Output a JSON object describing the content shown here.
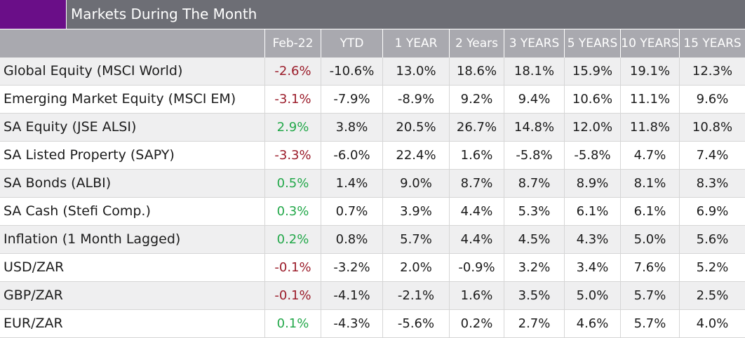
{
  "title": "Markets During The Month",
  "colors": {
    "title_bg": "#6d6e75",
    "swatch": "#6a0e88",
    "header_bg": "#a9a9af",
    "negative": "#9b1c2a",
    "positive": "#23a84a"
  },
  "chart_data": {
    "type": "table",
    "columns": [
      "Feb-22",
      "YTD",
      "1 YEAR",
      "2 Years",
      "3 YEARS",
      "5 YEARS",
      "10 YEARS",
      "15 YEARS"
    ],
    "rows": [
      {
        "label": "Global Equity (MSCI World)",
        "values": [
          "-2.6%",
          "-10.6%",
          "13.0%",
          "18.6%",
          "18.1%",
          "15.9%",
          "19.1%",
          "12.3%"
        ]
      },
      {
        "label": "Emerging Market Equity (MSCI EM)",
        "values": [
          "-3.1%",
          "-7.9%",
          "-8.9%",
          "9.2%",
          "9.4%",
          "10.6%",
          "11.1%",
          "9.6%"
        ]
      },
      {
        "label": "SA Equity (JSE ALSI)",
        "values": [
          "2.9%",
          "3.8%",
          "20.5%",
          "26.7%",
          "14.8%",
          "12.0%",
          "11.8%",
          "10.8%"
        ]
      },
      {
        "label": "SA Listed Property (SAPY)",
        "values": [
          "-3.3%",
          "-6.0%",
          "22.4%",
          "1.6%",
          "-5.8%",
          "-5.8%",
          "4.7%",
          "7.4%"
        ]
      },
      {
        "label": "SA Bonds (ALBI)",
        "values": [
          "0.5%",
          "1.4%",
          "9.0%",
          "8.7%",
          "8.7%",
          "8.9%",
          "8.1%",
          "8.3%"
        ]
      },
      {
        "label": "SA Cash (Stefi Comp.)",
        "values": [
          "0.3%",
          "0.7%",
          "3.9%",
          "4.4%",
          "5.3%",
          "6.1%",
          "6.1%",
          "6.9%"
        ]
      },
      {
        "label": "Inflation (1 Month Lagged)",
        "values": [
          "0.2%",
          "0.8%",
          "5.7%",
          "4.4%",
          "4.5%",
          "4.3%",
          "5.0%",
          "5.6%"
        ]
      },
      {
        "label": "USD/ZAR",
        "values": [
          "-0.1%",
          "-3.2%",
          "2.0%",
          "-0.9%",
          "3.2%",
          "3.4%",
          "7.6%",
          "5.2%"
        ]
      },
      {
        "label": "GBP/ZAR",
        "values": [
          "-0.1%",
          "-4.1%",
          "-2.1%",
          "1.6%",
          "3.5%",
          "5.0%",
          "5.7%",
          "2.5%"
        ]
      },
      {
        "label": "EUR/ZAR",
        "values": [
          "0.1%",
          "-4.3%",
          "-5.6%",
          "0.2%",
          "2.7%",
          "4.6%",
          "5.7%",
          "4.0%"
        ]
      }
    ]
  }
}
